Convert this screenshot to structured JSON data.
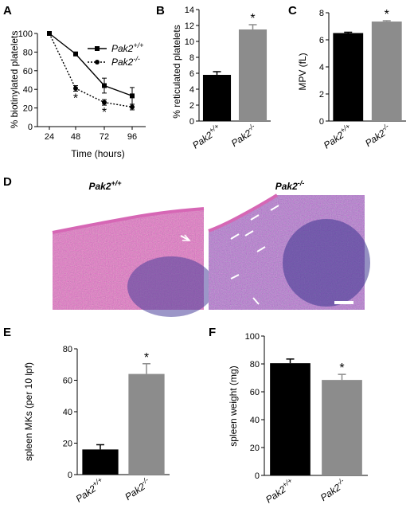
{
  "panels": {
    "A": {
      "letter": "A",
      "chart_data": {
        "type": "line",
        "x": [
          24,
          48,
          72,
          96
        ],
        "series": [
          {
            "name": "Pak2+/+",
            "name_base": "Pak2",
            "name_sup": "+/+",
            "values": [
              100,
              78,
              44,
              33
            ],
            "errors": [
              1,
              2,
              8,
              9
            ],
            "style": "solid",
            "marker": "square"
          },
          {
            "name": "Pak2-/-",
            "name_base": "Pak2",
            "name_sup": "-/-",
            "values": [
              100,
              41,
              26,
              21
            ],
            "errors": [
              1,
              3,
              3,
              3
            ],
            "style": "dotted",
            "marker": "circle"
          }
        ],
        "significance": [
          {
            "x": 48,
            "label": "*"
          },
          {
            "x": 72,
            "label": "*"
          }
        ],
        "xlabel": "Time (hours)",
        "ylabel": "% biotinylated platelets",
        "xticks": [
          "24",
          "48",
          "72",
          "96"
        ],
        "yticks": [
          "0",
          "20",
          "40",
          "60",
          "80",
          "100"
        ],
        "ylim": [
          0,
          100
        ],
        "legend_position": "top-right"
      }
    },
    "B": {
      "letter": "B",
      "chart_data": {
        "type": "bar",
        "categories": [
          "Pak2+/+",
          "Pak2-/-"
        ],
        "category_parts": [
          {
            "base": "Pak2",
            "sup": "+/+"
          },
          {
            "base": "Pak2",
            "sup": "-/-"
          }
        ],
        "values": [
          5.8,
          11.5
        ],
        "errors": [
          0.4,
          0.6
        ],
        "colors": [
          "#000000",
          "#8c8c8c"
        ],
        "significance": [
          null,
          "*"
        ],
        "ylabel": "% reticulated platelets",
        "yticks": [
          "0",
          "2",
          "4",
          "6",
          "8",
          "10",
          "12",
          "14"
        ],
        "ylim": [
          0,
          14
        ]
      }
    },
    "C": {
      "letter": "C",
      "chart_data": {
        "type": "bar",
        "categories": [
          "Pak2+/+",
          "Pak2-/-"
        ],
        "category_parts": [
          {
            "base": "Pak2",
            "sup": "+/+"
          },
          {
            "base": "Pak2",
            "sup": "-/-"
          }
        ],
        "values": [
          6.5,
          7.35
        ],
        "errors": [
          0.06,
          0.06
        ],
        "colors": [
          "#000000",
          "#8c8c8c"
        ],
        "significance": [
          null,
          "*"
        ],
        "ylabel": "MPV (fL)",
        "yticks": [
          "0",
          "2",
          "4",
          "6",
          "8"
        ],
        "ylim": [
          0,
          8
        ]
      }
    },
    "D": {
      "letter": "D",
      "left_title": {
        "base": "Pak2",
        "sup": "+/+"
      },
      "right_title": {
        "base": "Pak2",
        "sup": "-/-"
      }
    },
    "E": {
      "letter": "E",
      "chart_data": {
        "type": "bar",
        "categories": [
          "Pak2+/+",
          "Pak2-/-"
        ],
        "category_parts": [
          {
            "base": "Pak2",
            "sup": "+/+"
          },
          {
            "base": "Pak2",
            "sup": "-/-"
          }
        ],
        "values": [
          16,
          64
        ],
        "errors": [
          3,
          6.5
        ],
        "colors": [
          "#000000",
          "#8c8c8c"
        ],
        "significance": [
          null,
          "*"
        ],
        "ylabel": "spleen MKs (per 10 lpf)",
        "yticks": [
          "0",
          "20",
          "40",
          "60",
          "80"
        ],
        "ylim": [
          0,
          80
        ]
      }
    },
    "F": {
      "letter": "F",
      "chart_data": {
        "type": "bar",
        "categories": [
          "Pak2+/+",
          "Pak2-/-"
        ],
        "category_parts": [
          {
            "base": "Pak2",
            "sup": "+/+"
          },
          {
            "base": "Pak2",
            "sup": "-/-"
          }
        ],
        "values": [
          80.5,
          68.5
        ],
        "errors": [
          3,
          4
        ],
        "colors": [
          "#000000",
          "#8c8c8c"
        ],
        "significance": [
          null,
          "*"
        ],
        "ylabel": "spleen weight (mg)",
        "yticks": [
          "0",
          "20",
          "40",
          "60",
          "80",
          "100"
        ],
        "ylim": [
          0,
          100
        ]
      }
    }
  },
  "colors": {
    "black_bar": "#000000",
    "gray_bar": "#8c8c8c",
    "he_pink": "#c84c9c",
    "he_purple": "#4a3f9a",
    "scale_bar": "#ffffff"
  }
}
